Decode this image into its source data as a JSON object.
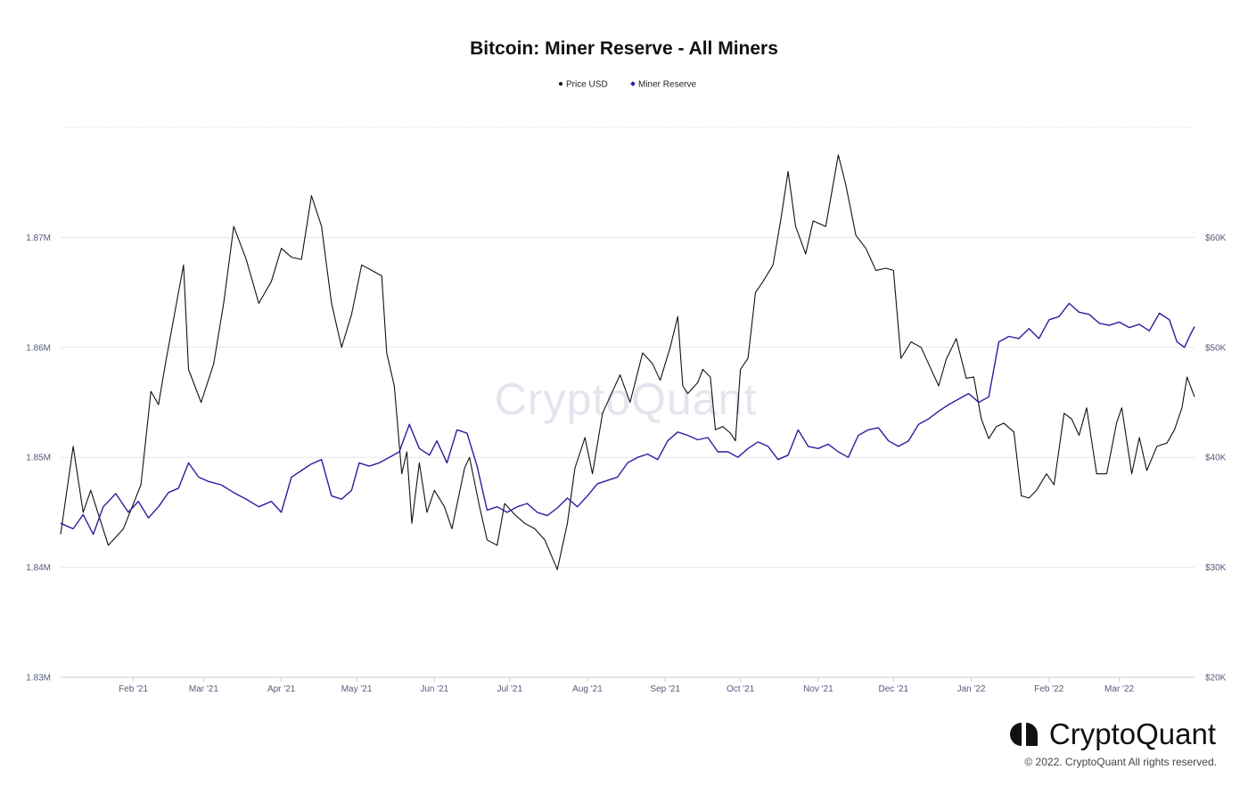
{
  "chart_data": {
    "type": "line",
    "title": "Bitcoin: Miner Reserve - All Miners",
    "legend": {
      "position": "top-center"
    },
    "x_ticks": [
      "Feb '21",
      "Mar '21",
      "Apr '21",
      "May '21",
      "Jun '21",
      "Jul '21",
      "Aug '21",
      "Sep '21",
      "Oct '21",
      "Nov '21",
      "Dec '21",
      "Jan '22",
      "Feb '22",
      "Mar '22"
    ],
    "x_range": [
      "2021-01-03",
      "2022-03-31"
    ],
    "y_left": {
      "label": "",
      "ticks": [
        "1.83M",
        "1.84M",
        "1.85M",
        "1.86M",
        "1.87M"
      ],
      "range": [
        1830000,
        1880000
      ]
    },
    "y_right": {
      "label": "",
      "ticks": [
        "$20K",
        "$30K",
        "$40K",
        "$50K",
        "$60K"
      ],
      "range": [
        20000,
        70000
      ]
    },
    "grid": true,
    "series": [
      {
        "name": "Price USD",
        "axis": "right",
        "color": "#111111",
        "points": [
          [
            "2021-01-03",
            33000
          ],
          [
            "2021-01-08",
            41000
          ],
          [
            "2021-01-12",
            35000
          ],
          [
            "2021-01-15",
            37000
          ],
          [
            "2021-01-22",
            32000
          ],
          [
            "2021-01-28",
            33500
          ],
          [
            "2021-02-04",
            37500
          ],
          [
            "2021-02-08",
            46000
          ],
          [
            "2021-02-11",
            44800
          ],
          [
            "2021-02-14",
            48800
          ],
          [
            "2021-02-21",
            57500
          ],
          [
            "2021-02-23",
            48000
          ],
          [
            "2021-02-28",
            45000
          ],
          [
            "2021-03-05",
            48500
          ],
          [
            "2021-03-09",
            54000
          ],
          [
            "2021-03-13",
            61000
          ],
          [
            "2021-03-18",
            58000
          ],
          [
            "2021-03-23",
            54000
          ],
          [
            "2021-03-28",
            56000
          ],
          [
            "2021-04-01",
            59000
          ],
          [
            "2021-04-05",
            58200
          ],
          [
            "2021-04-09",
            58000
          ],
          [
            "2021-04-13",
            63800
          ],
          [
            "2021-04-17",
            61000
          ],
          [
            "2021-04-21",
            54000
          ],
          [
            "2021-04-25",
            50000
          ],
          [
            "2021-04-29",
            53000
          ],
          [
            "2021-05-03",
            57500
          ],
          [
            "2021-05-07",
            57000
          ],
          [
            "2021-05-11",
            56500
          ],
          [
            "2021-05-13",
            49500
          ],
          [
            "2021-05-16",
            46500
          ],
          [
            "2021-05-19",
            38500
          ],
          [
            "2021-05-21",
            40500
          ],
          [
            "2021-05-23",
            34000
          ],
          [
            "2021-05-26",
            39500
          ],
          [
            "2021-05-29",
            35000
          ],
          [
            "2021-06-01",
            37000
          ],
          [
            "2021-06-05",
            35500
          ],
          [
            "2021-06-08",
            33500
          ],
          [
            "2021-06-13",
            39000
          ],
          [
            "2021-06-15",
            40000
          ],
          [
            "2021-06-19",
            35500
          ],
          [
            "2021-06-22",
            32500
          ],
          [
            "2021-06-26",
            32000
          ],
          [
            "2021-06-29",
            35800
          ],
          [
            "2021-07-03",
            34800
          ],
          [
            "2021-07-07",
            34000
          ],
          [
            "2021-07-11",
            33500
          ],
          [
            "2021-07-15",
            32500
          ],
          [
            "2021-07-20",
            29800
          ],
          [
            "2021-07-24",
            34000
          ],
          [
            "2021-07-27",
            39000
          ],
          [
            "2021-07-31",
            41800
          ],
          [
            "2021-08-03",
            38500
          ],
          [
            "2021-08-07",
            44000
          ],
          [
            "2021-08-10",
            45500
          ],
          [
            "2021-08-14",
            47500
          ],
          [
            "2021-08-18",
            45000
          ],
          [
            "2021-08-23",
            49500
          ],
          [
            "2021-08-27",
            48500
          ],
          [
            "2021-08-30",
            47000
          ],
          [
            "2021-09-03",
            50000
          ],
          [
            "2021-09-06",
            52800
          ],
          [
            "2021-09-08",
            46500
          ],
          [
            "2021-09-10",
            45800
          ],
          [
            "2021-09-14",
            46800
          ],
          [
            "2021-09-16",
            48000
          ],
          [
            "2021-09-19",
            47300
          ],
          [
            "2021-09-21",
            42500
          ],
          [
            "2021-09-24",
            42800
          ],
          [
            "2021-09-27",
            42200
          ],
          [
            "2021-09-29",
            41500
          ],
          [
            "2021-10-01",
            48000
          ],
          [
            "2021-10-04",
            49000
          ],
          [
            "2021-10-07",
            55000
          ],
          [
            "2021-10-10",
            56000
          ],
          [
            "2021-10-14",
            57500
          ],
          [
            "2021-10-17",
            61500
          ],
          [
            "2021-10-20",
            66000
          ],
          [
            "2021-10-23",
            61000
          ],
          [
            "2021-10-27",
            58500
          ],
          [
            "2021-10-30",
            61500
          ],
          [
            "2021-11-04",
            61000
          ],
          [
            "2021-11-09",
            67500
          ],
          [
            "2021-11-12",
            64800
          ],
          [
            "2021-11-16",
            60200
          ],
          [
            "2021-11-20",
            59000
          ],
          [
            "2021-11-24",
            57000
          ],
          [
            "2021-11-28",
            57200
          ],
          [
            "2021-12-01",
            57000
          ],
          [
            "2021-12-04",
            49000
          ],
          [
            "2021-12-08",
            50500
          ],
          [
            "2021-12-12",
            50000
          ],
          [
            "2021-12-15",
            48500
          ],
          [
            "2021-12-19",
            46500
          ],
          [
            "2021-12-22",
            48900
          ],
          [
            "2021-12-26",
            50800
          ],
          [
            "2021-12-30",
            47200
          ],
          [
            "2022-01-02",
            47300
          ],
          [
            "2022-01-05",
            43500
          ],
          [
            "2022-01-08",
            41700
          ],
          [
            "2022-01-11",
            42800
          ],
          [
            "2022-01-14",
            43100
          ],
          [
            "2022-01-18",
            42300
          ],
          [
            "2022-01-21",
            36500
          ],
          [
            "2022-01-24",
            36300
          ],
          [
            "2022-01-27",
            37000
          ],
          [
            "2022-01-31",
            38500
          ],
          [
            "2022-02-03",
            37500
          ],
          [
            "2022-02-07",
            44000
          ],
          [
            "2022-02-10",
            43500
          ],
          [
            "2022-02-13",
            42000
          ],
          [
            "2022-02-16",
            44500
          ],
          [
            "2022-02-20",
            38500
          ],
          [
            "2022-02-24",
            38500
          ],
          [
            "2022-02-28",
            43200
          ],
          [
            "2022-03-02",
            44500
          ],
          [
            "2022-03-06",
            38500
          ],
          [
            "2022-03-09",
            41800
          ],
          [
            "2022-03-12",
            38800
          ],
          [
            "2022-03-16",
            41000
          ],
          [
            "2022-03-20",
            41300
          ],
          [
            "2022-03-23",
            42500
          ],
          [
            "2022-03-26",
            44500
          ],
          [
            "2022-03-28",
            47300
          ],
          [
            "2022-03-31",
            45500
          ]
        ]
      },
      {
        "name": "Miner Reserve",
        "axis": "left",
        "color": "#2b1e9e",
        "points": [
          [
            "2021-01-03",
            1844000
          ],
          [
            "2021-01-08",
            1843500
          ],
          [
            "2021-01-12",
            1844800
          ],
          [
            "2021-01-16",
            1843000
          ],
          [
            "2021-01-20",
            1845500
          ],
          [
            "2021-01-25",
            1846700
          ],
          [
            "2021-01-30",
            1845000
          ],
          [
            "2021-02-03",
            1846000
          ],
          [
            "2021-02-07",
            1844500
          ],
          [
            "2021-02-11",
            1845500
          ],
          [
            "2021-02-15",
            1846800
          ],
          [
            "2021-02-19",
            1847200
          ],
          [
            "2021-02-23",
            1849500
          ],
          [
            "2021-02-27",
            1848200
          ],
          [
            "2021-03-03",
            1847800
          ],
          [
            "2021-03-08",
            1847500
          ],
          [
            "2021-03-13",
            1846800
          ],
          [
            "2021-03-18",
            1846200
          ],
          [
            "2021-03-23",
            1845500
          ],
          [
            "2021-03-28",
            1846000
          ],
          [
            "2021-04-01",
            1845000
          ],
          [
            "2021-04-05",
            1848200
          ],
          [
            "2021-04-09",
            1848800
          ],
          [
            "2021-04-13",
            1849400
          ],
          [
            "2021-04-17",
            1849800
          ],
          [
            "2021-04-21",
            1846500
          ],
          [
            "2021-04-25",
            1846200
          ],
          [
            "2021-04-29",
            1847000
          ],
          [
            "2021-05-02",
            1849500
          ],
          [
            "2021-05-06",
            1849200
          ],
          [
            "2021-05-10",
            1849500
          ],
          [
            "2021-05-14",
            1850000
          ],
          [
            "2021-05-18",
            1850500
          ],
          [
            "2021-05-22",
            1853000
          ],
          [
            "2021-05-26",
            1850800
          ],
          [
            "2021-05-30",
            1850200
          ],
          [
            "2021-06-02",
            1851500
          ],
          [
            "2021-06-06",
            1849500
          ],
          [
            "2021-06-10",
            1852500
          ],
          [
            "2021-06-14",
            1852200
          ],
          [
            "2021-06-18",
            1849200
          ],
          [
            "2021-06-22",
            1845200
          ],
          [
            "2021-06-26",
            1845500
          ],
          [
            "2021-06-30",
            1845000
          ],
          [
            "2021-07-04",
            1845500
          ],
          [
            "2021-07-08",
            1845800
          ],
          [
            "2021-07-12",
            1845000
          ],
          [
            "2021-07-16",
            1844700
          ],
          [
            "2021-07-20",
            1845400
          ],
          [
            "2021-07-24",
            1846300
          ],
          [
            "2021-07-28",
            1845500
          ],
          [
            "2021-08-01",
            1846500
          ],
          [
            "2021-08-05",
            1847600
          ],
          [
            "2021-08-09",
            1847900
          ],
          [
            "2021-08-13",
            1848200
          ],
          [
            "2021-08-17",
            1849500
          ],
          [
            "2021-08-21",
            1850000
          ],
          [
            "2021-08-25",
            1850300
          ],
          [
            "2021-08-29",
            1849800
          ],
          [
            "2021-09-02",
            1851500
          ],
          [
            "2021-09-06",
            1852300
          ],
          [
            "2021-09-10",
            1852000
          ],
          [
            "2021-09-14",
            1851600
          ],
          [
            "2021-09-18",
            1851800
          ],
          [
            "2021-09-22",
            1850500
          ],
          [
            "2021-09-26",
            1850500
          ],
          [
            "2021-09-30",
            1850000
          ],
          [
            "2021-10-04",
            1850800
          ],
          [
            "2021-10-08",
            1851400
          ],
          [
            "2021-10-12",
            1851000
          ],
          [
            "2021-10-16",
            1849800
          ],
          [
            "2021-10-20",
            1850200
          ],
          [
            "2021-10-24",
            1852500
          ],
          [
            "2021-10-28",
            1851000
          ],
          [
            "2021-11-01",
            1850800
          ],
          [
            "2021-11-05",
            1851200
          ],
          [
            "2021-11-09",
            1850500
          ],
          [
            "2021-11-13",
            1850000
          ],
          [
            "2021-11-17",
            1852000
          ],
          [
            "2021-11-21",
            1852500
          ],
          [
            "2021-11-25",
            1852700
          ],
          [
            "2021-11-29",
            1851500
          ],
          [
            "2021-12-03",
            1851000
          ],
          [
            "2021-12-07",
            1851500
          ],
          [
            "2021-12-11",
            1853000
          ],
          [
            "2021-12-15",
            1853500
          ],
          [
            "2021-12-19",
            1854200
          ],
          [
            "2021-12-23",
            1854800
          ],
          [
            "2021-12-27",
            1855300
          ],
          [
            "2021-12-31",
            1855800
          ],
          [
            "2022-01-04",
            1855000
          ],
          [
            "2022-01-08",
            1855500
          ],
          [
            "2022-01-12",
            1860500
          ],
          [
            "2022-01-16",
            1861000
          ],
          [
            "2022-01-20",
            1860800
          ],
          [
            "2022-01-24",
            1861700
          ],
          [
            "2022-01-28",
            1860800
          ],
          [
            "2022-02-01",
            1862500
          ],
          [
            "2022-02-05",
            1862800
          ],
          [
            "2022-02-09",
            1864000
          ],
          [
            "2022-02-13",
            1863200
          ],
          [
            "2022-02-17",
            1863000
          ],
          [
            "2022-02-21",
            1862200
          ],
          [
            "2022-02-25",
            1862000
          ],
          [
            "2022-03-01",
            1862300
          ],
          [
            "2022-03-05",
            1861800
          ],
          [
            "2022-03-09",
            1862100
          ],
          [
            "2022-03-13",
            1861500
          ],
          [
            "2022-03-17",
            1863100
          ],
          [
            "2022-03-21",
            1862500
          ],
          [
            "2022-03-24",
            1860500
          ],
          [
            "2022-03-27",
            1860000
          ],
          [
            "2022-03-29",
            1861000
          ],
          [
            "2022-03-31",
            1861900
          ]
        ]
      }
    ]
  },
  "watermark": "CryptoQuant",
  "brand": {
    "name": "CryptoQuant",
    "copyright": "© 2022. CryptoQuant All rights reserved."
  }
}
